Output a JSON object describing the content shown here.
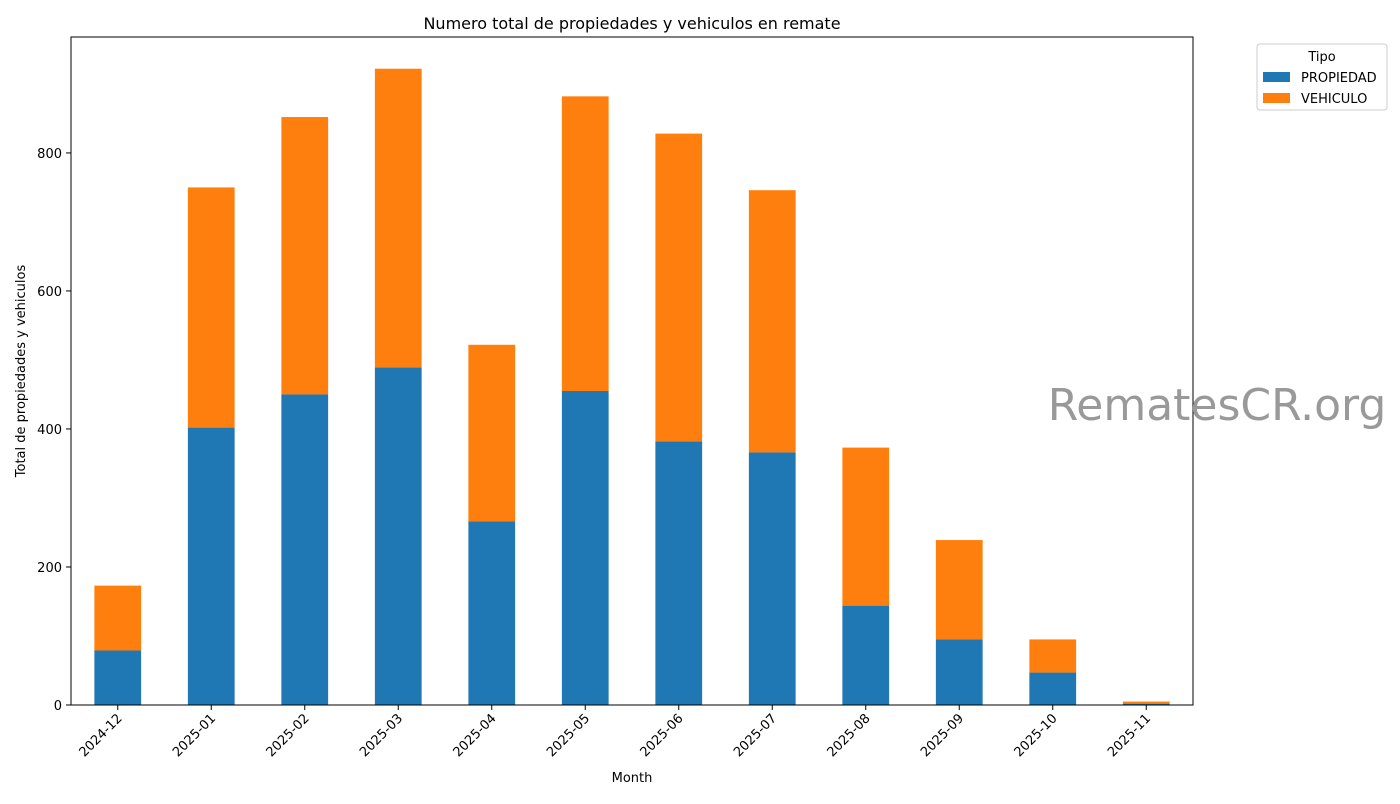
{
  "chart_data": {
    "type": "bar",
    "stacked": true,
    "title": "Numero total de propiedades y vehiculos en remate",
    "xlabel": "Month",
    "ylabel": "Total de propiedades y vehiculos",
    "categories": [
      "2024-12",
      "2025-01",
      "2025-02",
      "2025-03",
      "2025-04",
      "2025-05",
      "2025-06",
      "2025-07",
      "2025-08",
      "2025-09",
      "2025-10",
      "2025-11"
    ],
    "series": [
      {
        "name": "PROPIEDAD",
        "color": "#1f77b4",
        "values": [
          79,
          402,
          450,
          489,
          266,
          455,
          382,
          366,
          144,
          95,
          47,
          2
        ]
      },
      {
        "name": "VEHICULO",
        "color": "#ff7f0e",
        "values": [
          94,
          348,
          402,
          433,
          256,
          427,
          446,
          380,
          229,
          144,
          48,
          3
        ]
      }
    ],
    "ylim": [
      0,
      968
    ],
    "yticks": [
      0,
      200,
      400,
      600,
      800
    ],
    "grid": false,
    "legend": {
      "title": "Tipo",
      "placement": "outside top-right"
    }
  },
  "watermark": {
    "text": "RematesCR.org",
    "color": "#999999"
  }
}
